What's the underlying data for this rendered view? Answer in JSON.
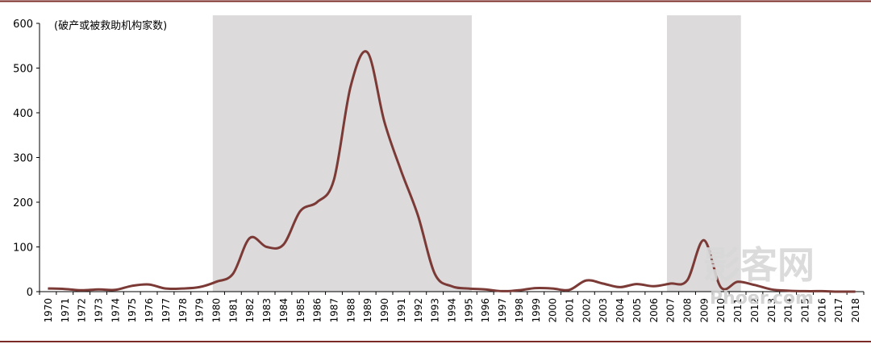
{
  "chart_data": {
    "type": "line",
    "annotation": "(破产或被救助机构家数)",
    "ylim": [
      0,
      600
    ],
    "yticks": [
      "600",
      "500",
      "400",
      "300",
      "200",
      "100",
      "0"
    ],
    "ytick_values": [
      600,
      500,
      400,
      300,
      200,
      100,
      0
    ],
    "shaded_periods": [
      {
        "start": 1980,
        "end": 1995
      },
      {
        "start": 2007,
        "end": 2011
      }
    ],
    "series": [
      {
        "color": "#7b3a36",
        "x": [
          1970,
          1971,
          1972,
          1973,
          1974,
          1975,
          1976,
          1977,
          1978,
          1979,
          1980,
          1981,
          1982,
          1983,
          1984,
          1985,
          1986,
          1987,
          1988,
          1989,
          1990,
          1991,
          1992,
          1993,
          1994,
          1995,
          1996,
          1997,
          1998,
          1999,
          2000,
          2001,
          2002,
          2003,
          2004,
          2005,
          2006,
          2007,
          2008,
          2009,
          2010,
          2011,
          2012,
          2013,
          2014,
          2015,
          2016,
          2017,
          2018
        ],
        "values": [
          7,
          6,
          3,
          5,
          4,
          13,
          16,
          7,
          7,
          10,
          22,
          40,
          120,
          100,
          105,
          180,
          200,
          250,
          460,
          535,
          380,
          270,
          170,
          40,
          12,
          7,
          5,
          1,
          3,
          8,
          7,
          4,
          25,
          18,
          10,
          17,
          12,
          18,
          25,
          115,
          10,
          22,
          15,
          5,
          2,
          1,
          1,
          0,
          0
        ]
      }
    ],
    "categories": [
      "1970",
      "1971",
      "1972",
      "1973",
      "1974",
      "1975",
      "1976",
      "1977",
      "1978",
      "1979",
      "1980",
      "1981",
      "1982",
      "1983",
      "1984",
      "1985",
      "1986",
      "1987",
      "1988",
      "1989",
      "1990",
      "1991",
      "1992",
      "1993",
      "1994",
      "1995",
      "1996",
      "1997",
      "1998",
      "1999",
      "2000",
      "2001",
      "2002",
      "2003",
      "2004",
      "2005",
      "2006",
      "2007",
      "2008",
      "2009",
      "2010",
      "2011",
      "2012",
      "2013",
      "2014",
      "2015",
      "2016",
      "2017",
      "2018"
    ]
  },
  "colors": {
    "border": "#7b2a26",
    "shade": "#dcdadb",
    "line": "#7b3a36"
  },
  "watermark": {
    "main": "影客网",
    "sub": "Phoer.com"
  }
}
